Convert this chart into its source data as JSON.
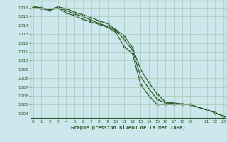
{
  "title": "Graphe pression niveau de la mer (hPa)",
  "bg_color": "#cde8ec",
  "line_color": "#2d5a2d",
  "grid_color": "#aac8b8",
  "ylim": [
    1003.5,
    1016.8
  ],
  "xlim": [
    -0.3,
    23.3
  ],
  "yticks": [
    1004,
    1005,
    1006,
    1007,
    1008,
    1009,
    1010,
    1011,
    1012,
    1013,
    1014,
    1015,
    1016
  ],
  "xticks": [
    0,
    1,
    2,
    3,
    4,
    5,
    6,
    7,
    8,
    9,
    10,
    11,
    12,
    13,
    14,
    15,
    16,
    17,
    18,
    19,
    21,
    22,
    23
  ],
  "series": [
    {
      "x": [
        0,
        1,
        2,
        3,
        4,
        5,
        6,
        7,
        8,
        9,
        10,
        11,
        12,
        13,
        14,
        15,
        16,
        17,
        18,
        19,
        22,
        23
      ],
      "y": [
        1016.1,
        1015.9,
        1015.7,
        1016.0,
        1015.4,
        1015.1,
        1014.7,
        1014.4,
        1014.1,
        1013.8,
        1013.2,
        1011.6,
        1010.8,
        1007.3,
        1006.0,
        1005.0,
        1005.0,
        1005.0,
        1005.0,
        1005.0,
        1004.1,
        1003.7
      ]
    },
    {
      "x": [
        0,
        1,
        2,
        3,
        4,
        5,
        6,
        7,
        8,
        9,
        10,
        11,
        12,
        13,
        14,
        15,
        16,
        17,
        18,
        19,
        22,
        23
      ],
      "y": [
        1016.1,
        1016.0,
        1015.8,
        1016.1,
        1015.9,
        1015.5,
        1015.2,
        1014.9,
        1014.5,
        1014.2,
        1013.5,
        1012.8,
        1011.5,
        1009.0,
        1007.5,
        1006.2,
        1005.3,
        1005.2,
        1005.1,
        1005.0,
        1004.1,
        1003.7
      ]
    },
    {
      "x": [
        0,
        1,
        2,
        3,
        4,
        5,
        6,
        7,
        8,
        9,
        10,
        11,
        12,
        13,
        14,
        15,
        16,
        17,
        18,
        19,
        22,
        23
      ],
      "y": [
        1016.1,
        1016.0,
        1015.8,
        1016.0,
        1015.7,
        1015.3,
        1015.0,
        1014.6,
        1014.2,
        1013.9,
        1013.4,
        1012.4,
        1011.2,
        1008.2,
        1006.8,
        1005.6,
        1005.2,
        1005.1,
        1005.0,
        1005.0,
        1004.1,
        1003.7
      ]
    }
  ]
}
